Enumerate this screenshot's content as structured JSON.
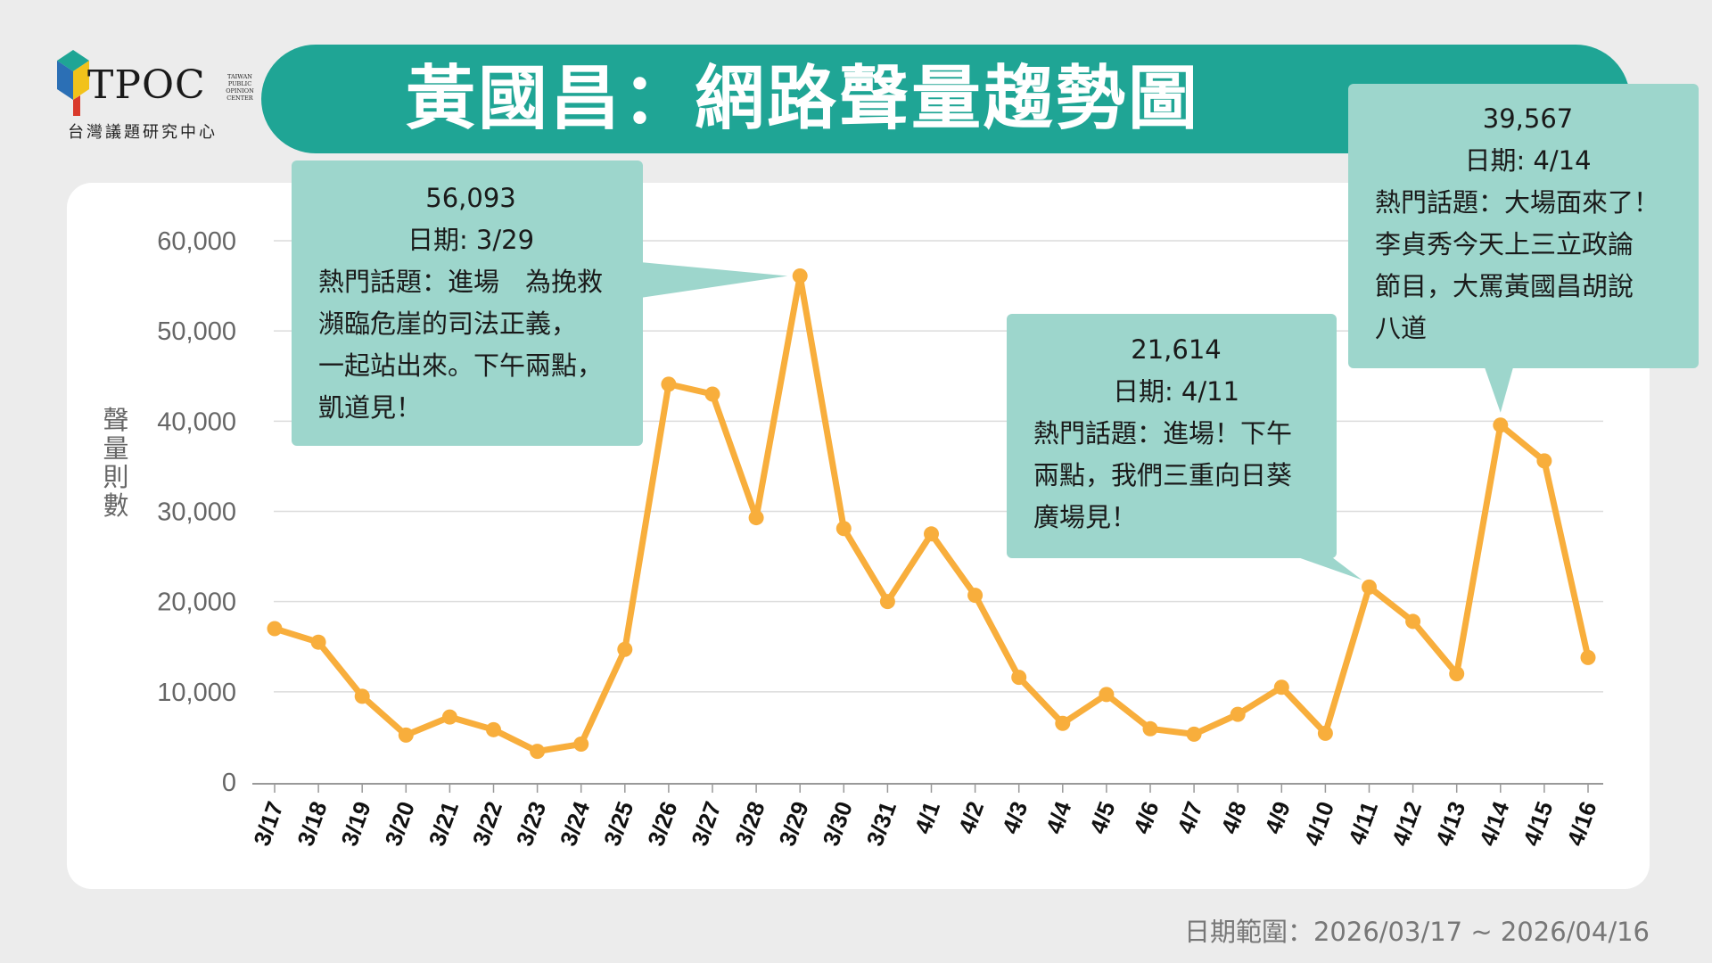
{
  "logo": {
    "name": "TPOC",
    "side_text": [
      "TAIWAN",
      "PUBLIC",
      "OPINION",
      "CENTER"
    ],
    "subtitle": "台灣議題研究中心"
  },
  "title": "黃國昌：網路聲量趨勢圖",
  "colors": {
    "accent": "#1fa595",
    "callout": "#9dd6cc",
    "line": "#f8ae3c",
    "background": "#ececec",
    "card": "#ffffff"
  },
  "chart_data": {
    "type": "line",
    "title": "黃國昌：網路聲量趨勢圖",
    "xlabel": "",
    "ylabel": "聲量則數",
    "ylim": [
      0,
      60000
    ],
    "yticks": [
      0,
      10000,
      20000,
      30000,
      40000,
      50000,
      60000
    ],
    "ytick_labels": [
      "0",
      "10,000",
      "20,000",
      "30,000",
      "40,000",
      "50,000",
      "60,000"
    ],
    "grid": true,
    "categories": [
      "3/17",
      "3/18",
      "3/19",
      "3/20",
      "3/21",
      "3/22",
      "3/23",
      "3/24",
      "3/25",
      "3/26",
      "3/27",
      "3/28",
      "3/29",
      "3/30",
      "3/31",
      "4/1",
      "4/2",
      "4/3",
      "4/4",
      "4/5",
      "4/6",
      "4/7",
      "4/8",
      "4/9",
      "4/10",
      "4/11",
      "4/12",
      "4/13",
      "4/14",
      "4/15",
      "4/16"
    ],
    "series": [
      {
        "name": "聲量則數",
        "values": [
          17000,
          15500,
          9500,
          5200,
          7200,
          5800,
          3400,
          4200,
          14700,
          44100,
          43000,
          29300,
          56093,
          28100,
          20000,
          27500,
          20700,
          11600,
          6500,
          9700,
          5900,
          5300,
          7500,
          10500,
          5400,
          21614,
          17800,
          12000,
          39567,
          35600,
          13800
        ]
      }
    ]
  },
  "callouts": [
    {
      "value": "56,093",
      "date": "日期: 3/29",
      "topic_lines": [
        "熱門話題：進場　為挽救",
        "瀕臨危崖的司法正義，",
        "一起站出來。下午兩點，",
        "凱道見！"
      ]
    },
    {
      "value": "21,614",
      "date": "日期: 4/11",
      "topic_lines": [
        "熱門話題：進場！下午",
        "兩點，我們三重向日葵",
        "廣場見！"
      ]
    },
    {
      "value": "39,567",
      "date": "日期: 4/14",
      "topic_lines": [
        "熱門話題：大場面來了！",
        "李貞秀今天上三立政論",
        "節目，大罵黃國昌胡說",
        "八道"
      ]
    }
  ],
  "footer": "日期範圍：2026/03/17 ~ 2026/04/16"
}
